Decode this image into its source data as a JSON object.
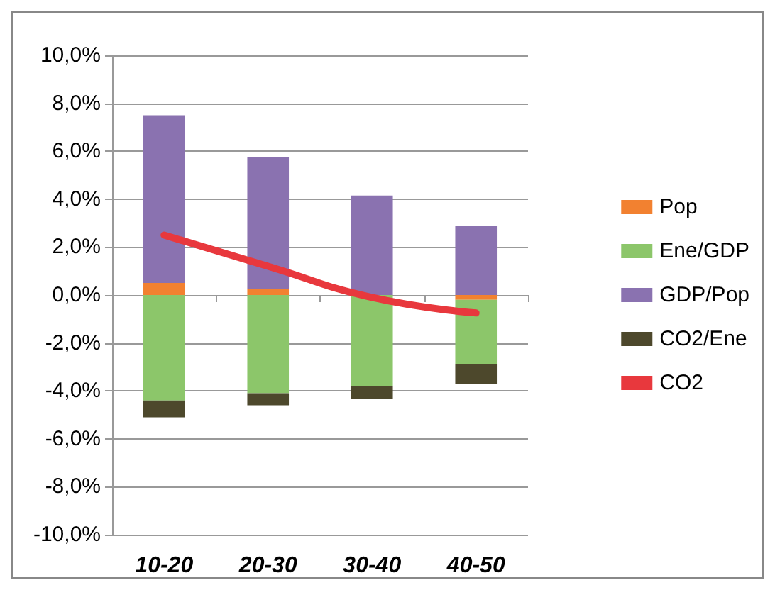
{
  "chart_data": {
    "type": "bar",
    "stacked": true,
    "categories": [
      "10-20",
      "20-30",
      "30-40",
      "40-50"
    ],
    "series": [
      {
        "name": "Pop",
        "color": "#f28130",
        "values": [
          0.5,
          0.25,
          null,
          -0.2
        ]
      },
      {
        "name": "Ene/GDP",
        "color": "#8cc66a",
        "values": [
          -4.4,
          -4.1,
          -3.8,
          -2.7
        ]
      },
      {
        "name": "GDP/Pop",
        "color": "#8a72b0",
        "values": [
          7.0,
          5.5,
          4.15,
          2.9
        ]
      },
      {
        "name": "CO2/Ene",
        "color": "#4d482c",
        "values": [
          -0.7,
          -0.5,
          -0.55,
          -0.8
        ]
      },
      {
        "name": "CO2",
        "type": "line",
        "color": "#e8383d",
        "values": [
          2.5,
          1.2,
          -0.1,
          -0.75
        ]
      }
    ],
    "ylim": [
      -10,
      10
    ],
    "yticks": [
      {
        "value": -10,
        "label": "-10,0%"
      },
      {
        "value": -8,
        "label": "-8,0%"
      },
      {
        "value": -6,
        "label": "-6,0%"
      },
      {
        "value": -4,
        "label": "-4,0%"
      },
      {
        "value": -2,
        "label": "-2,0%"
      },
      {
        "value": 0,
        "label": "0,0%"
      },
      {
        "value": 2,
        "label": "2,0%"
      },
      {
        "value": 4,
        "label": "4,0%"
      },
      {
        "value": 6,
        "label": "6,0%"
      },
      {
        "value": 8,
        "label": "8,0%"
      },
      {
        "value": 10,
        "label": "10,0%"
      }
    ],
    "grid": "y",
    "legend": "right",
    "marker": "none"
  }
}
